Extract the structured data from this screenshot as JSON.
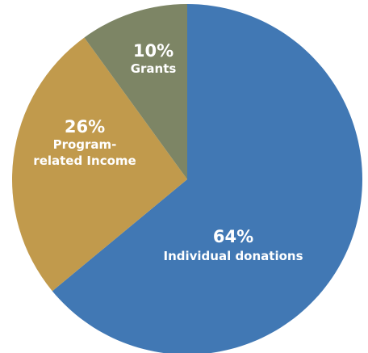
{
  "chart_data": {
    "type": "pie",
    "title": "",
    "start_angle_deg": 0,
    "direction": "clockwise",
    "slices": [
      {
        "label_lines": [
          "Individual donations"
        ],
        "value": 64,
        "value_label": "64%",
        "color": "#4178B4"
      },
      {
        "label_lines": [
          "Program-",
          "related Income"
        ],
        "value": 26,
        "value_label": "26%",
        "color": "#C19A4C"
      },
      {
        "label_lines": [
          "Grants"
        ],
        "value": 10,
        "value_label": "10%",
        "color": "#7D8565"
      }
    ]
  }
}
